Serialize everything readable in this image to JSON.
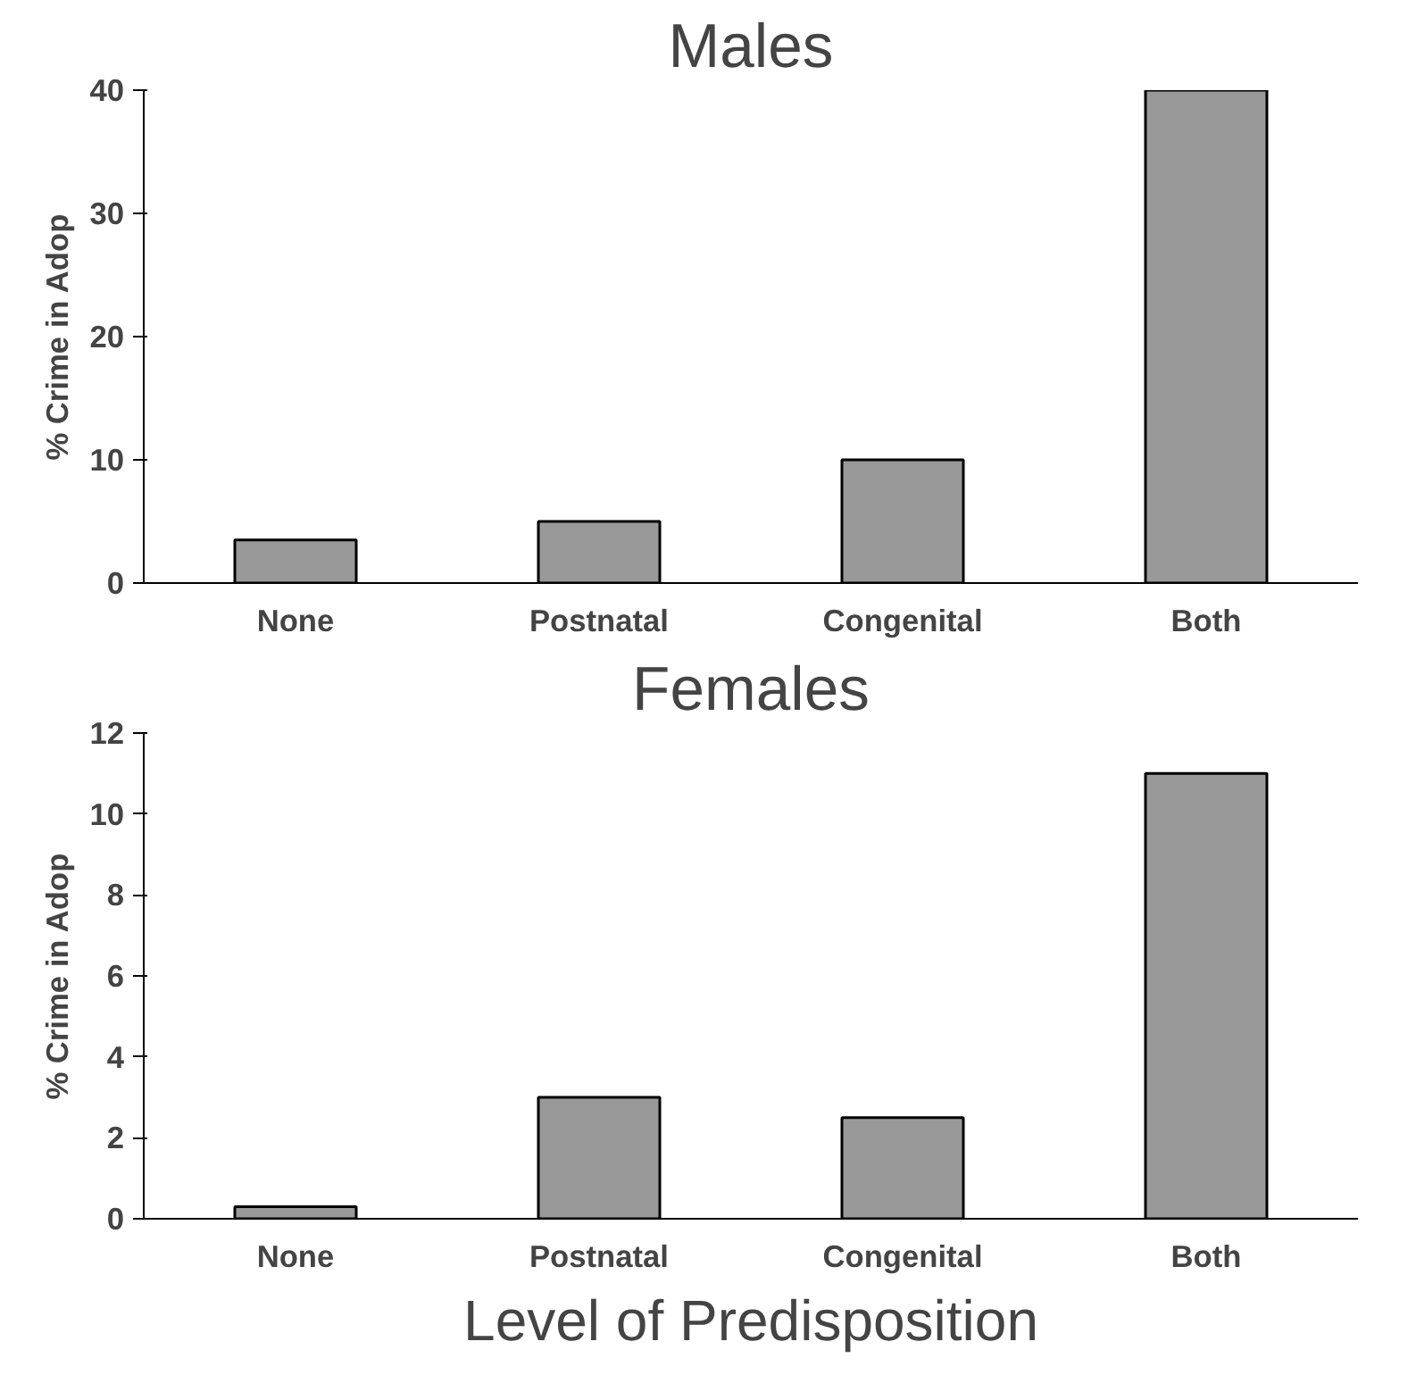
{
  "chart_data": [
    {
      "type": "bar",
      "title": "Males",
      "ylabel": "% Crime in Adop",
      "categories": [
        "None",
        "Postnatal",
        "Congenital",
        "Both"
      ],
      "values": [
        3.5,
        5,
        10,
        40
      ],
      "color": "#999999",
      "ylim": [
        0,
        40
      ],
      "yticks": [
        0,
        10,
        20,
        30,
        40
      ],
      "grid": false
    },
    {
      "type": "bar",
      "title": "Females",
      "ylabel": "% Crime in Adop",
      "xlabel": "Level of Predisposition",
      "categories": [
        "None",
        "Postnatal",
        "Congenital",
        "Both"
      ],
      "values": [
        0.3,
        3,
        2.5,
        11
      ],
      "color": "#999999",
      "ylim": [
        0,
        12
      ],
      "yticks": [
        0,
        2,
        4,
        6,
        8,
        10,
        12
      ],
      "grid": false
    }
  ]
}
